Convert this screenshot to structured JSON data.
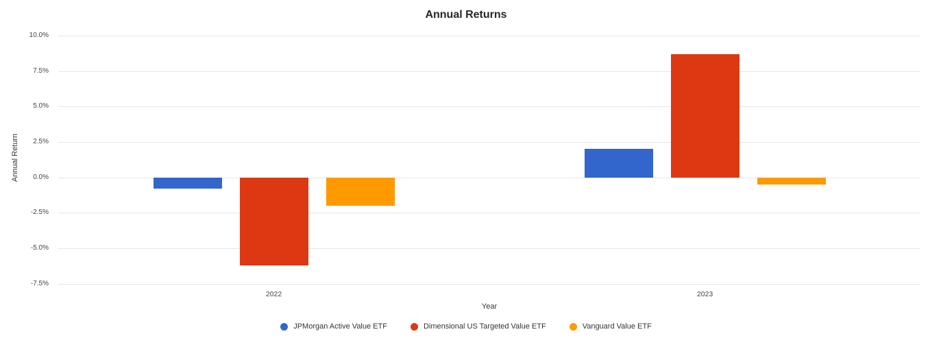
{
  "title": "Annual Returns",
  "chart_data": {
    "type": "bar",
    "title": "Annual Returns",
    "xlabel": "Year",
    "ylabel": "Annual Return",
    "categories": [
      "2022",
      "2023"
    ],
    "series": [
      {
        "name": "JPMorgan Active Value ETF",
        "color": "#3366cc",
        "values": [
          -0.8,
          2.0
        ]
      },
      {
        "name": "Dimensional US Targeted Value ETF",
        "color": "#dc3912",
        "values": [
          -6.2,
          8.7
        ]
      },
      {
        "name": "Vanguard Value ETF",
        "color": "#ff9900",
        "values": [
          -2.0,
          -0.5
        ]
      }
    ],
    "ylim": [
      -7.5,
      10.0
    ],
    "yticks": [
      10.0,
      7.5,
      5.0,
      2.5,
      0.0,
      -2.5,
      -5.0,
      -7.5
    ],
    "ytick_labels": [
      "10.0%",
      "7.5%",
      "5.0%",
      "2.5%",
      "0.0%",
      "-2.5%",
      "-5.0%",
      "-7.5%"
    ],
    "grid": "horizontal-only",
    "legend_position": "bottom",
    "gridline_color": "#e6e6e6",
    "background_color": "#ffffff",
    "text_color": "#333333"
  }
}
